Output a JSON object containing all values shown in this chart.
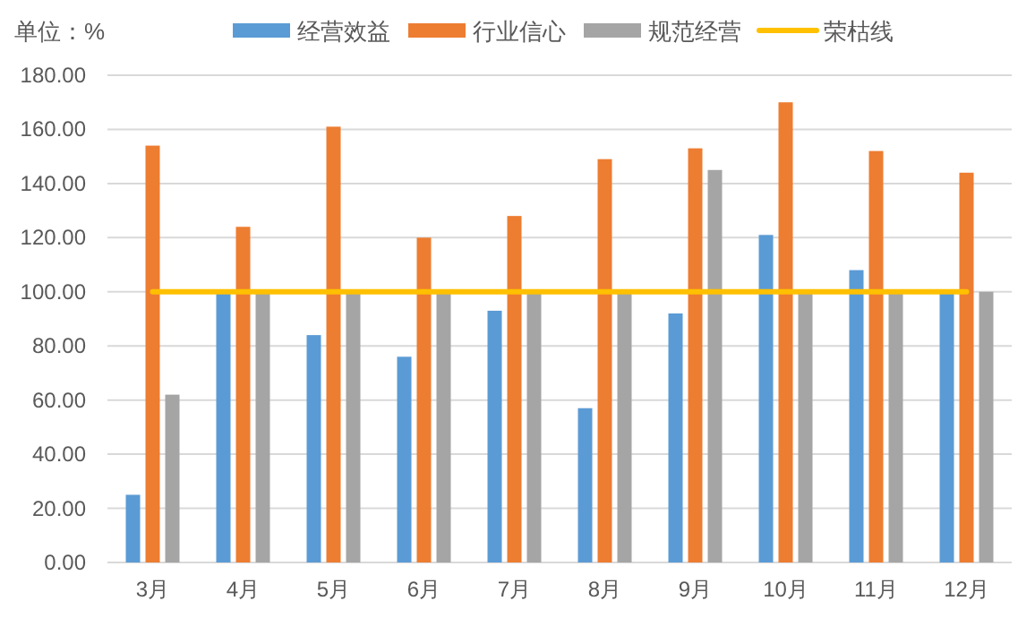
{
  "chart_data": {
    "type": "bar",
    "categories": [
      "3月",
      "4月",
      "5月",
      "6月",
      "7月",
      "8月",
      "9月",
      "10月",
      "11月",
      "12月"
    ],
    "series": [
      {
        "name": "经营效益",
        "color": "#5b9bd5",
        "values": [
          25,
          100,
          84,
          76,
          93,
          57,
          92,
          121,
          108,
          100
        ]
      },
      {
        "name": "行业信心",
        "color": "#ed7d31",
        "values": [
          154,
          124,
          161,
          120,
          128,
          149,
          153,
          170,
          152,
          144
        ]
      },
      {
        "name": "规范经营",
        "color": "#a5a5a5",
        "values": [
          62,
          100,
          100,
          100,
          100,
          100,
          145,
          100,
          100,
          100
        ]
      },
      {
        "name": "荣枯线",
        "type": "line",
        "color": "#ffc000",
        "values": [
          100,
          100,
          100,
          100,
          100,
          100,
          100,
          100,
          100,
          100
        ]
      }
    ],
    "ylim": [
      0,
      180
    ],
    "yticks": [
      {
        "value": 0,
        "label": "0.00"
      },
      {
        "value": 20,
        "label": "20.00"
      },
      {
        "value": 40,
        "label": "40.00"
      },
      {
        "value": 60,
        "label": "60.00"
      },
      {
        "value": 80,
        "label": "80.00"
      },
      {
        "value": 100,
        "label": "100.00"
      },
      {
        "value": 120,
        "label": "120.00"
      },
      {
        "value": 140,
        "label": "140.00"
      },
      {
        "value": 160,
        "label": "160.00"
      },
      {
        "value": 180,
        "label": "180.00"
      }
    ],
    "grid": "y",
    "legend": "top",
    "marker": "none",
    "annotations": [
      "单位：%"
    ]
  }
}
